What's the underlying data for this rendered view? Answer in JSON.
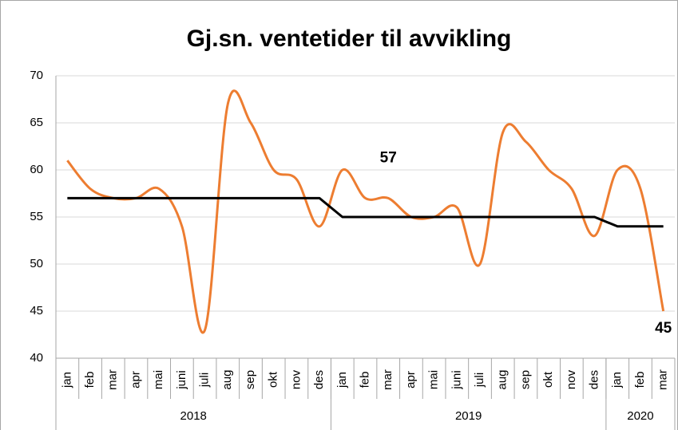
{
  "chart_data": {
    "type": "line",
    "title": "Gj.sn. ventetider til avvikling",
    "category_groups": [
      {
        "label": "2018",
        "categories": [
          "jan",
          "feb",
          "mar",
          "apr",
          "mai",
          "juni",
          "juli",
          "aug",
          "sep",
          "okt",
          "nov",
          "des"
        ]
      },
      {
        "label": "2019",
        "categories": [
          "jan",
          "feb",
          "mar",
          "apr",
          "mai",
          "juni",
          "juli",
          "aug",
          "sep",
          "okt",
          "nov",
          "des"
        ]
      },
      {
        "label": "2020",
        "categories": [
          "jan",
          "feb",
          "mar"
        ]
      }
    ],
    "series": [
      {
        "color": "#ED7D31",
        "smooth": true,
        "values": [
          61,
          58,
          57,
          57,
          58,
          54,
          43,
          67,
          65,
          60,
          59,
          54,
          60,
          57,
          57,
          55,
          55,
          56,
          50,
          64,
          63,
          60,
          58,
          53,
          60,
          58,
          45
        ],
        "value_labels": [
          null,
          null,
          null,
          null,
          null,
          null,
          null,
          null,
          null,
          null,
          null,
          null,
          null,
          null,
          "57",
          null,
          null,
          null,
          null,
          null,
          null,
          null,
          null,
          null,
          null,
          null,
          "45"
        ]
      },
      {
        "color": "#000000",
        "smooth": false,
        "values": [
          57,
          57,
          57,
          57,
          57,
          57,
          57,
          57,
          57,
          57,
          57,
          57,
          55,
          55,
          55,
          55,
          55,
          55,
          55,
          55,
          55,
          55,
          55,
          55,
          54,
          54,
          54
        ]
      }
    ],
    "ylim": [
      40,
      70
    ],
    "yticks": [
      40,
      45,
      50,
      55,
      60,
      65,
      70
    ],
    "grid": true
  }
}
